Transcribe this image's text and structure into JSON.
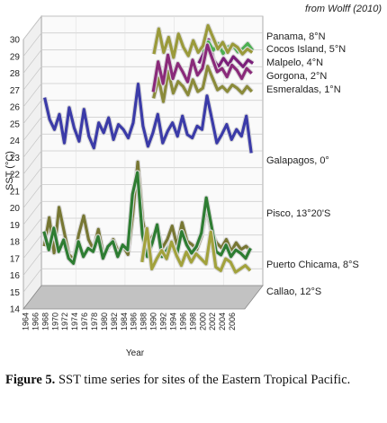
{
  "source_note": "from Wolff (2010)",
  "caption": {
    "label": "Figure 5.",
    "text": " SST time series for sites of the Eastern Tropical Pacific."
  },
  "chart_data": {
    "type": "line",
    "title": "",
    "xlabel": "Year",
    "ylabel": "SST (°C)",
    "ylim": [
      14,
      30
    ],
    "yticks": [
      14,
      15,
      16,
      17,
      18,
      19,
      20,
      21,
      22,
      23,
      24,
      25,
      26,
      27,
      28,
      29,
      30
    ],
    "xticks": [
      "1964",
      "1966",
      "1968",
      "1970",
      "1972",
      "1974",
      "1976",
      "1978",
      "1980",
      "1982",
      "1984",
      "1986",
      "1988",
      "1990",
      "1992",
      "1994",
      "1996",
      "1998",
      "2000",
      "2002",
      "2004",
      "2006"
    ],
    "grid": true,
    "three_d": true,
    "x": [
      1964,
      1965,
      1966,
      1967,
      1968,
      1969,
      1970,
      1971,
      1972,
      1973,
      1974,
      1975,
      1976,
      1977,
      1978,
      1979,
      1980,
      1981,
      1982,
      1983,
      1984,
      1985,
      1986,
      1987,
      1988,
      1989,
      1990,
      1991,
      1992,
      1993,
      1994,
      1995,
      1996,
      1997,
      1998,
      1999,
      2000,
      2001,
      2002,
      2003,
      2004,
      2005,
      2006,
      2007
    ],
    "series": [
      {
        "name": "Callao, 12°S",
        "color": "#a2a23c",
        "values": [
          null,
          null,
          null,
          null,
          null,
          null,
          null,
          null,
          null,
          null,
          null,
          null,
          null,
          null,
          null,
          null,
          null,
          null,
          null,
          null,
          15.6,
          17.6,
          15.2,
          15.8,
          16.3,
          15.8,
          16.8,
          16.0,
          15.4,
          16.2,
          15.6,
          16.1,
          15.8,
          15.5,
          17.4,
          15.3,
          15.1,
          15.8,
          15.6,
          15.0,
          15.2,
          15.4,
          15.1,
          null
        ]
      },
      {
        "name": "Puerto Chicama, 8°S",
        "color": "#2e7d32",
        "values": [
          17.4,
          16.3,
          17.6,
          16.2,
          16.9,
          15.8,
          15.5,
          16.8,
          15.9,
          16.4,
          16.2,
          17.1,
          15.8,
          16.5,
          16.8,
          15.9,
          16.6,
          16.3,
          19.6,
          20.9,
          17.2,
          15.9,
          16.7,
          17.8,
          15.9,
          16.3,
          16.8,
          16.0,
          17.4,
          16.6,
          16.1,
          16.5,
          17.3,
          19.4,
          17.8,
          16.2,
          16.0,
          16.6,
          15.9,
          16.3,
          16.1,
          15.8,
          16.4,
          null
        ]
      },
      {
        "name": "Pisco, 13°20'S",
        "color": "#777733",
        "values": [
          16.5,
          18.2,
          16.1,
          18.8,
          17.4,
          16.0,
          15.7,
          17.2,
          18.3,
          16.9,
          16.3,
          17.5,
          16.0,
          16.4,
          16.9,
          16.2,
          16.5,
          16.0,
          18.4,
          21.5,
          18.0,
          16.6,
          17.1,
          17.5,
          16.4,
          16.9,
          17.7,
          16.5,
          17.9,
          16.8,
          16.6,
          16.3,
          17.1,
          18.9,
          17.3,
          16.7,
          16.4,
          16.9,
          16.2,
          16.7,
          16.3,
          16.5,
          16.2,
          null
        ]
      },
      {
        "name": "Galapagos, 0°",
        "color": "#3b3ba8",
        "values": [
          25.3,
          24.0,
          23.4,
          24.3,
          22.6,
          24.7,
          23.5,
          22.7,
          24.6,
          23.0,
          22.3,
          23.8,
          23.2,
          24.1,
          22.8,
          23.7,
          23.4,
          22.9,
          23.8,
          26.1,
          23.6,
          22.4,
          23.2,
          24.3,
          22.6,
          23.3,
          23.8,
          23.0,
          24.2,
          23.1,
          22.9,
          23.6,
          23.4,
          25.4,
          24.0,
          22.6,
          23.1,
          23.7,
          22.8,
          23.4,
          23.0,
          24.2,
          22.0,
          null
        ]
      },
      {
        "name": "Gorgona, 2°N",
        "color": "#8a2a7a",
        "values": [
          null,
          null,
          null,
          null,
          null,
          null,
          null,
          null,
          null,
          null,
          null,
          null,
          null,
          null,
          null,
          null,
          null,
          null,
          null,
          null,
          null,
          null,
          25.6,
          27.4,
          26.1,
          27.8,
          26.4,
          27.3,
          26.8,
          26.2,
          27.5,
          26.6,
          27.0,
          28.4,
          27.6,
          26.8,
          27.0,
          26.5,
          27.2,
          26.9,
          26.4,
          27.0,
          26.7,
          null
        ]
      },
      {
        "name": "Esmeraldas, 1°N",
        "color": "#8b8b3a",
        "values": [
          null,
          null,
          null,
          null,
          null,
          null,
          null,
          null,
          null,
          null,
          null,
          null,
          null,
          null,
          null,
          null,
          null,
          null,
          null,
          null,
          null,
          null,
          25.2,
          26.4,
          25.0,
          26.8,
          25.5,
          26.2,
          25.9,
          25.4,
          26.3,
          25.6,
          25.8,
          27.1,
          26.4,
          25.7,
          25.9,
          25.6,
          26.0,
          25.8,
          25.5,
          25.9,
          25.6,
          null
        ]
      },
      {
        "name": "Panama, 8°N",
        "color": "#9a9a3a",
        "values": [
          null,
          null,
          null,
          null,
          null,
          null,
          null,
          null,
          null,
          null,
          null,
          null,
          null,
          null,
          null,
          null,
          null,
          null,
          null,
          null,
          null,
          null,
          27.8,
          29.3,
          27.9,
          28.8,
          27.6,
          29.0,
          28.2,
          27.7,
          28.6,
          27.9,
          28.3,
          29.5,
          28.8,
          28.1,
          28.5,
          27.9,
          28.4,
          28.2,
          27.8,
          28.1,
          27.9,
          null
        ]
      },
      {
        "name": "Cocos Island, 5°N",
        "color": "#4caf50",
        "values": [
          null,
          null,
          null,
          null,
          null,
          null,
          null,
          null,
          null,
          null,
          null,
          null,
          null,
          null,
          null,
          null,
          null,
          null,
          null,
          null,
          null,
          null,
          null,
          null,
          null,
          null,
          null,
          null,
          null,
          null,
          null,
          null,
          27.9,
          28.5,
          28.0,
          28.4,
          27.8,
          28.2,
          28.3,
          27.9,
          28.1,
          28.4,
          28.0,
          null
        ]
      },
      {
        "name": "Malpelo, 4°N",
        "color": "#7b1f7a",
        "values": [
          null,
          null,
          null,
          null,
          null,
          null,
          null,
          null,
          null,
          null,
          null,
          null,
          null,
          null,
          null,
          null,
          null,
          null,
          null,
          null,
          null,
          null,
          null,
          null,
          null,
          null,
          null,
          null,
          null,
          null,
          null,
          27.2,
          27.8,
          28.6,
          27.4,
          27.0,
          27.5,
          27.1,
          27.6,
          27.3,
          27.0,
          27.4,
          27.2,
          null
        ]
      }
    ]
  }
}
